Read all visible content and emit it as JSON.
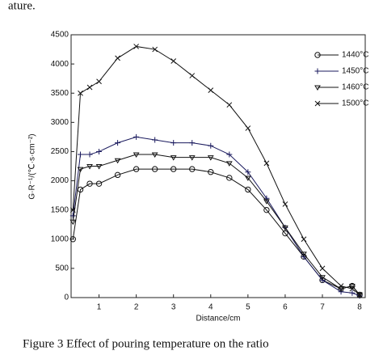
{
  "chart_data": {
    "type": "line",
    "top_text": "ature.",
    "caption": "Figure 3    Effect of pouring temperature on the ratio",
    "xlabel": "Distance/cm",
    "ylabel": "G·R⁻¹/(℃·s·cm⁻²)",
    "x": [
      0.3,
      0.5,
      0.75,
      1,
      1.5,
      2,
      2.5,
      3,
      3.5,
      4,
      4.5,
      5,
      5.5,
      6,
      6.5,
      7,
      7.5,
      7.8,
      8
    ],
    "series": [
      {
        "name": "1440°C",
        "marker": "o",
        "color": "#111",
        "values": [
          1000,
          1850,
          1950,
          1950,
          2100,
          2200,
          2200,
          2200,
          2200,
          2150,
          2050,
          1850,
          1500,
          1100,
          700,
          300,
          150,
          200,
          50
        ]
      },
      {
        "name": "1450°C",
        "marker": "+",
        "color": "#1a1a5e",
        "values": [
          1400,
          2450,
          2450,
          2500,
          2650,
          2750,
          2700,
          2650,
          2650,
          2600,
          2450,
          2150,
          1700,
          1200,
          700,
          300,
          100,
          80,
          30
        ]
      },
      {
        "name": "1460°C",
        "marker": "v",
        "color": "#111",
        "values": [
          1300,
          2200,
          2250,
          2250,
          2350,
          2450,
          2450,
          2400,
          2400,
          2400,
          2300,
          2050,
          1650,
          1200,
          750,
          350,
          150,
          200,
          50
        ]
      },
      {
        "name": "1500°C",
        "marker": "x",
        "color": "#111",
        "values": [
          1500,
          3500,
          3600,
          3700,
          4100,
          4300,
          4250,
          4050,
          3800,
          3550,
          3300,
          2900,
          2300,
          1600,
          1000,
          500,
          200,
          150,
          50
        ]
      }
    ],
    "xlim": [
      0.25,
      8.15
    ],
    "xticks": [
      1,
      2,
      3,
      4,
      5,
      6,
      7,
      8
    ],
    "ylim": [
      0,
      4500
    ],
    "yticks": [
      0,
      500,
      1000,
      1500,
      2000,
      2500,
      3000,
      3500,
      4000,
      4500
    ],
    "legend": "upper right"
  }
}
